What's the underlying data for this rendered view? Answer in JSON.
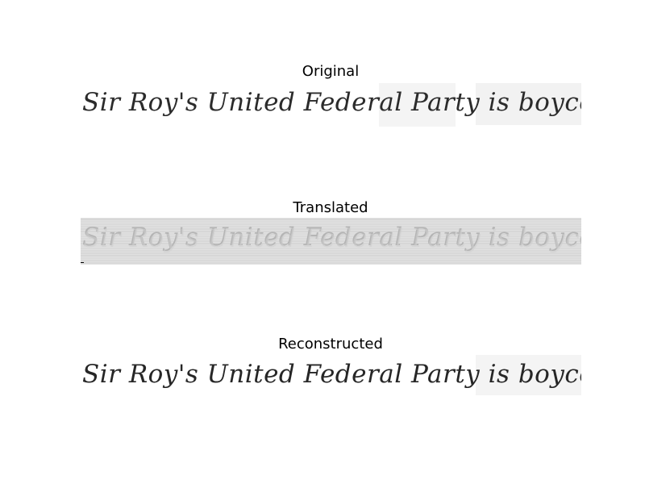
{
  "panels": [
    {
      "title": "Original",
      "line_text": "Sir Roy's United Federal Party is boycotting",
      "style": "clean"
    },
    {
      "title": "Translated",
      "line_text": "Sir Roy's United Federal Party is boycotting",
      "style": "degraded"
    },
    {
      "title": "Reconstructed",
      "line_text": "Sir Roy's United Federal Party is boycotting",
      "style": "clean"
    }
  ],
  "colors": {
    "ink": "#2b2b2b",
    "faded_ink": "#b8b8b8",
    "paper": "#ffffff",
    "paper_shade": "#f3f3f3",
    "degraded_bg": "#dcdcdc",
    "degraded_line": "#c4c4c4"
  }
}
